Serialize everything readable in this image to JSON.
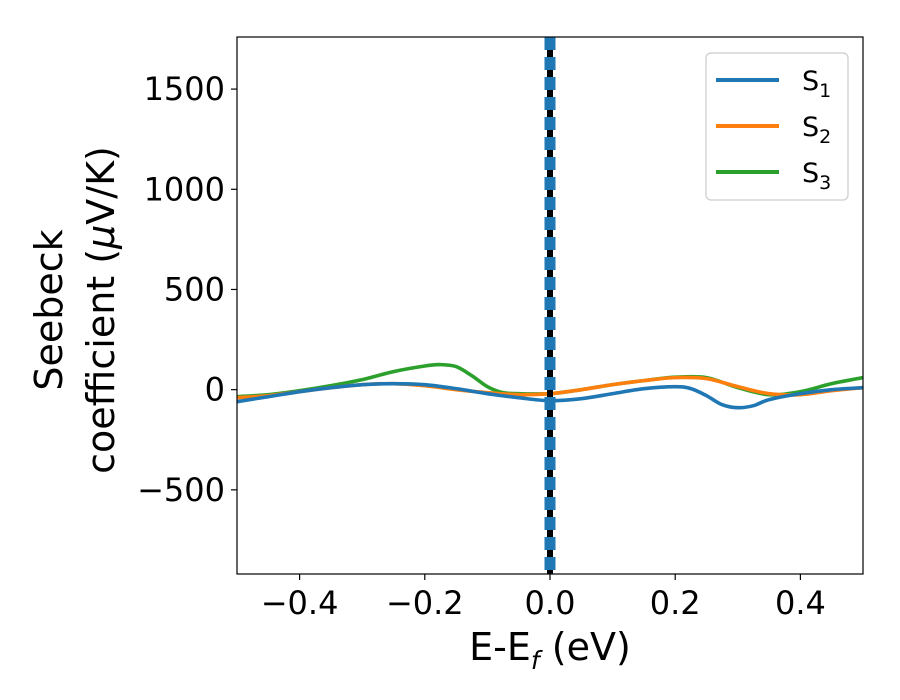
{
  "chart_data": {
    "type": "line",
    "title": "",
    "xlabel": "E-E",
    "xlabel_sub": "f",
    "xlabel_unit": " (eV)",
    "ylabel_line1": "Seebeck",
    "ylabel_line2": "coefficient  (",
    "ylabel_mu": "μ",
    "ylabel_end": "V/K)",
    "xlim": [
      -0.5,
      0.5
    ],
    "ylim": [
      -920,
      1760
    ],
    "xticks": [
      -0.4,
      -0.2,
      0.0,
      0.2,
      0.4
    ],
    "xtick_labels": [
      "−0.4",
      "−0.2",
      "0.0",
      "0.2",
      "0.4"
    ],
    "yticks": [
      -500,
      0,
      500,
      1000,
      1500
    ],
    "ytick_labels": [
      "−500",
      "0",
      "500",
      "1000",
      "1500"
    ],
    "grid": false,
    "legend_position": "top-right",
    "fermi_line_x": 0.0,
    "series": [
      {
        "name": "S",
        "sub": "1",
        "color": "#1f77b4",
        "x": [
          -0.5,
          -0.45,
          -0.4,
          -0.35,
          -0.3,
          -0.25,
          -0.2,
          -0.15,
          -0.1,
          -0.05,
          0.0,
          0.05,
          0.1,
          0.15,
          0.2,
          0.225,
          0.25,
          0.275,
          0.3,
          0.325,
          0.35,
          0.4,
          0.45,
          0.5
        ],
        "values": [
          -60,
          -35,
          -10,
          10,
          25,
          30,
          25,
          5,
          -20,
          -40,
          -55,
          -45,
          -20,
          5,
          15,
          5,
          -30,
          -75,
          -90,
          -80,
          -50,
          -20,
          0,
          10
        ]
      },
      {
        "name": "S",
        "sub": "2",
        "color": "#ff7f0e",
        "x": [
          -0.5,
          -0.45,
          -0.4,
          -0.35,
          -0.3,
          -0.25,
          -0.2,
          -0.15,
          -0.1,
          -0.05,
          0.0,
          0.05,
          0.1,
          0.15,
          0.2,
          0.25,
          0.3,
          0.35,
          0.4,
          0.45,
          0.5
        ],
        "values": [
          -40,
          -30,
          -10,
          10,
          25,
          30,
          20,
          0,
          -15,
          -25,
          -20,
          0,
          25,
          45,
          60,
          55,
          15,
          -20,
          -25,
          -5,
          10
        ]
      },
      {
        "name": "S",
        "sub": "3",
        "color": "#2ca02c",
        "x": [
          -0.5,
          -0.45,
          -0.4,
          -0.35,
          -0.3,
          -0.25,
          -0.2,
          -0.175,
          -0.15,
          -0.125,
          -0.1,
          -0.075,
          -0.05,
          0.0,
          0.05,
          0.1,
          0.15,
          0.2,
          0.25,
          0.3,
          0.35,
          0.4,
          0.45,
          0.5
        ],
        "values": [
          -35,
          -25,
          -5,
          20,
          50,
          90,
          118,
          125,
          115,
          70,
          15,
          -15,
          -20,
          -20,
          0,
          25,
          45,
          62,
          60,
          10,
          -25,
          -10,
          30,
          60
        ]
      }
    ]
  }
}
